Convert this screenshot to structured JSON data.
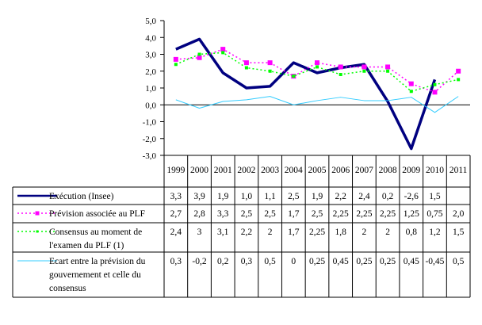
{
  "chart_data": {
    "type": "line",
    "title": "",
    "xlabel": "",
    "ylabel": "",
    "ylim": [
      -3.0,
      5.0
    ],
    "ytick_step": 1.0,
    "y_tick_labels": [
      "5,0",
      "4,0",
      "3,0",
      "2,0",
      "1,0",
      "0,0",
      "-1,0",
      "-2,0",
      "-3,0"
    ],
    "grid": false,
    "legend_placement": "data-table-left",
    "categories": [
      "1999",
      "2000",
      "2001",
      "2002",
      "2003",
      "2004",
      "2005",
      "2006",
      "2007",
      "2008",
      "2009",
      "2010",
      "2011"
    ],
    "series": [
      {
        "name": "Exécution (Insee)",
        "label_lines": [
          "Exécution (Insee)"
        ],
        "color": "#000080",
        "style": "solid-thick",
        "values": [
          3.3,
          3.9,
          1.9,
          1.0,
          1.1,
          2.5,
          1.9,
          2.2,
          2.4,
          0.2,
          -2.6,
          1.5,
          null
        ],
        "value_labels": [
          "3,3",
          "3,9",
          "1,9",
          "1,0",
          "1,1",
          "2,5",
          "1,9",
          "2,2",
          "2,4",
          "0,2",
          "-2,6",
          "1,5",
          ""
        ]
      },
      {
        "name": "Prévision associée au PLF",
        "label_lines": [
          "Prévision associée au PLF"
        ],
        "color": "#FF00FF",
        "style": "dotted-square-marker",
        "values": [
          2.7,
          2.8,
          3.3,
          2.5,
          2.5,
          1.7,
          2.5,
          2.25,
          2.25,
          2.25,
          1.25,
          0.75,
          2.0
        ],
        "value_labels": [
          "2,7",
          "2,8",
          "3,3",
          "2,5",
          "2,5",
          "1,7",
          "2,5",
          "2,25",
          "2,25",
          "2,25",
          "1,25",
          "0,75",
          "2,0"
        ]
      },
      {
        "name": "Consensus au moment de l'examen du PLF (1)",
        "label_lines": [
          "Consensus au moment de",
          "l'examen du PLF (1)"
        ],
        "color": "#00FF00",
        "style": "dotted-small-square-marker",
        "values": [
          2.4,
          3.0,
          3.1,
          2.2,
          2.0,
          1.7,
          2.25,
          1.8,
          2.0,
          2.0,
          0.8,
          1.2,
          1.5
        ],
        "value_labels": [
          "2,4",
          "3",
          "3,1",
          "2,2",
          "2",
          "1,7",
          "2,25",
          "1,8",
          "2",
          "2",
          "0,8",
          "1,2",
          "1,5"
        ]
      },
      {
        "name": "Ecart entre la prévision du gouvernement et celle du consensus",
        "label_lines": [
          "Ecart entre la prévision du",
          "gouvernement et celle du",
          "consensus"
        ],
        "color": "#33CCFF",
        "style": "solid-thin",
        "values": [
          0.3,
          -0.2,
          0.2,
          0.3,
          0.5,
          0,
          0.25,
          0.45,
          0.25,
          0.25,
          0.45,
          -0.45,
          0.5
        ],
        "value_labels": [
          "0,3",
          "-0,2",
          "0,2",
          "0,3",
          "0,5",
          "0",
          "0,25",
          "0,45",
          "0,25",
          "0,25",
          "0,45",
          "-0,45",
          "0,5"
        ]
      }
    ]
  }
}
